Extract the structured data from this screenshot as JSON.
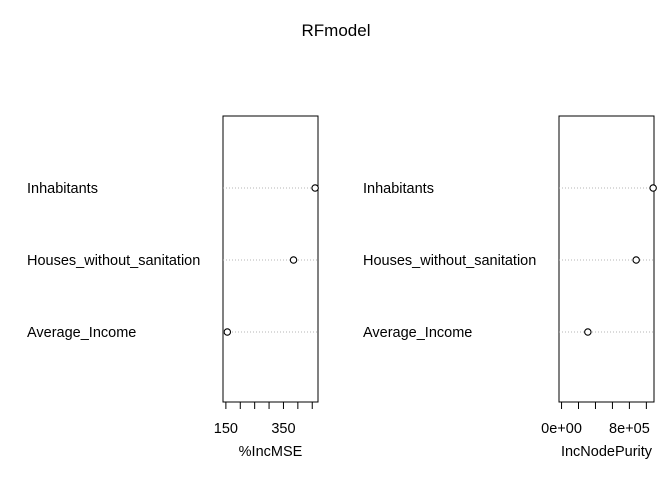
{
  "title": "RFmodel",
  "chart_data": [
    {
      "type": "scatter",
      "variant": "dotchart",
      "categories": [
        "Inhabitants",
        "Houses_without_sanitation",
        "Average_Income"
      ],
      "values": [
        460,
        385,
        155
      ],
      "xlabel": "%IncMSE",
      "xlim": [
        140,
        470
      ],
      "ticks": [
        150,
        200,
        250,
        300,
        350,
        400,
        450
      ],
      "tick_labels": [
        "150",
        "",
        "",
        "",
        "350",
        "",
        ""
      ],
      "grid": "dotted"
    },
    {
      "type": "scatter",
      "variant": "dotchart",
      "categories": [
        "Inhabitants",
        "Houses_without_sanitation",
        "Average_Income"
      ],
      "values": [
        1080000,
        880000,
        310000
      ],
      "xlabel": "IncNodePurity",
      "xlim": [
        -30000,
        1090000
      ],
      "ticks": [
        0,
        200000,
        400000,
        600000,
        800000,
        1000000
      ],
      "tick_labels": [
        "0e+00",
        "",
        "",
        "",
        "8e+05",
        ""
      ],
      "grid": "dotted"
    }
  ]
}
